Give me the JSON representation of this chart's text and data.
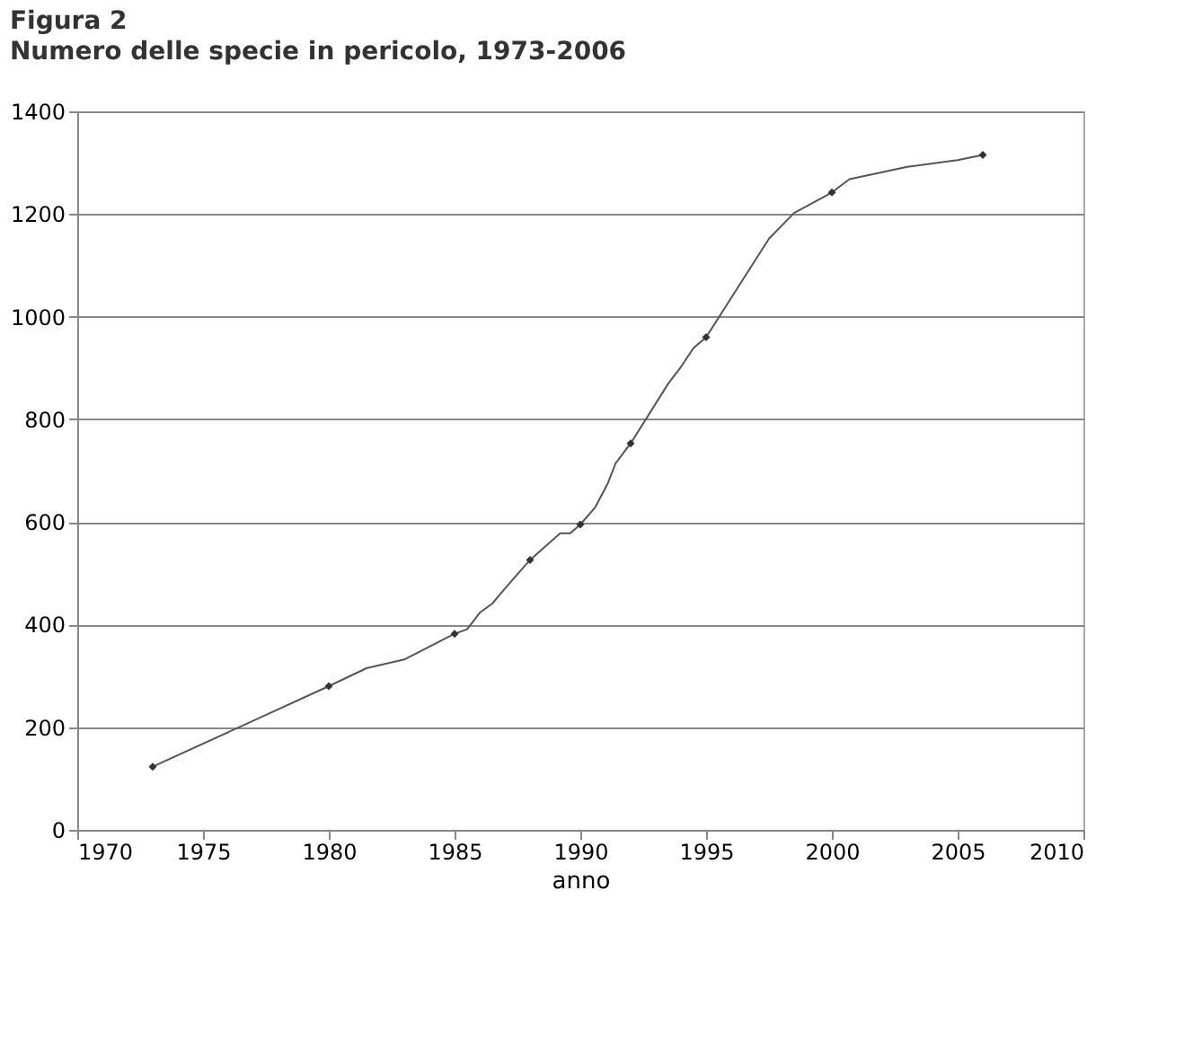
{
  "chart_data": {
    "type": "line",
    "title": "Figura 2",
    "subtitle": "Numero delle specie in pericolo, 1973-2006",
    "xlabel": "anno",
    "series": [
      {
        "color": "#555555",
        "marker": "none",
        "x": [
          1973,
          1980,
          1981.5,
          1983,
          1985,
          1985.5,
          1986,
          1986.5,
          1987,
          1988,
          1989.2,
          1989.6,
          1990,
          1990.6,
          1991.1,
          1991.4,
          1992,
          1993.5,
          1994,
          1994.5,
          1995,
          1997.5,
          1998.5,
          2000,
          2000.7,
          2003,
          2005,
          2006
        ],
        "values": [
          123,
          280,
          315,
          332,
          382,
          391,
          423,
          441,
          470,
          526,
          578,
          578,
          595,
          629,
          676,
          714,
          753,
          870,
          902,
          939,
          960,
          1152,
          1202,
          1242,
          1268,
          1292,
          1305,
          1315
        ]
      },
      {
        "type": "scatter",
        "color": "#333333",
        "marker": "diamond",
        "x": [
          1973,
          1980,
          1985,
          1988,
          1990,
          1992,
          1995,
          2000,
          2006
        ],
        "values": [
          123,
          280,
          382,
          526,
          595,
          753,
          960,
          1242,
          1315
        ]
      }
    ],
    "xlim": [
      1970,
      2010
    ],
    "xticks": [
      1970,
      1975,
      1980,
      1985,
      1990,
      1995,
      2000,
      2005,
      2010
    ],
    "ylim": [
      0,
      1400
    ],
    "yticks": [
      0,
      200,
      400,
      600,
      800,
      1000,
      1200,
      1400
    ],
    "grid": "y"
  }
}
